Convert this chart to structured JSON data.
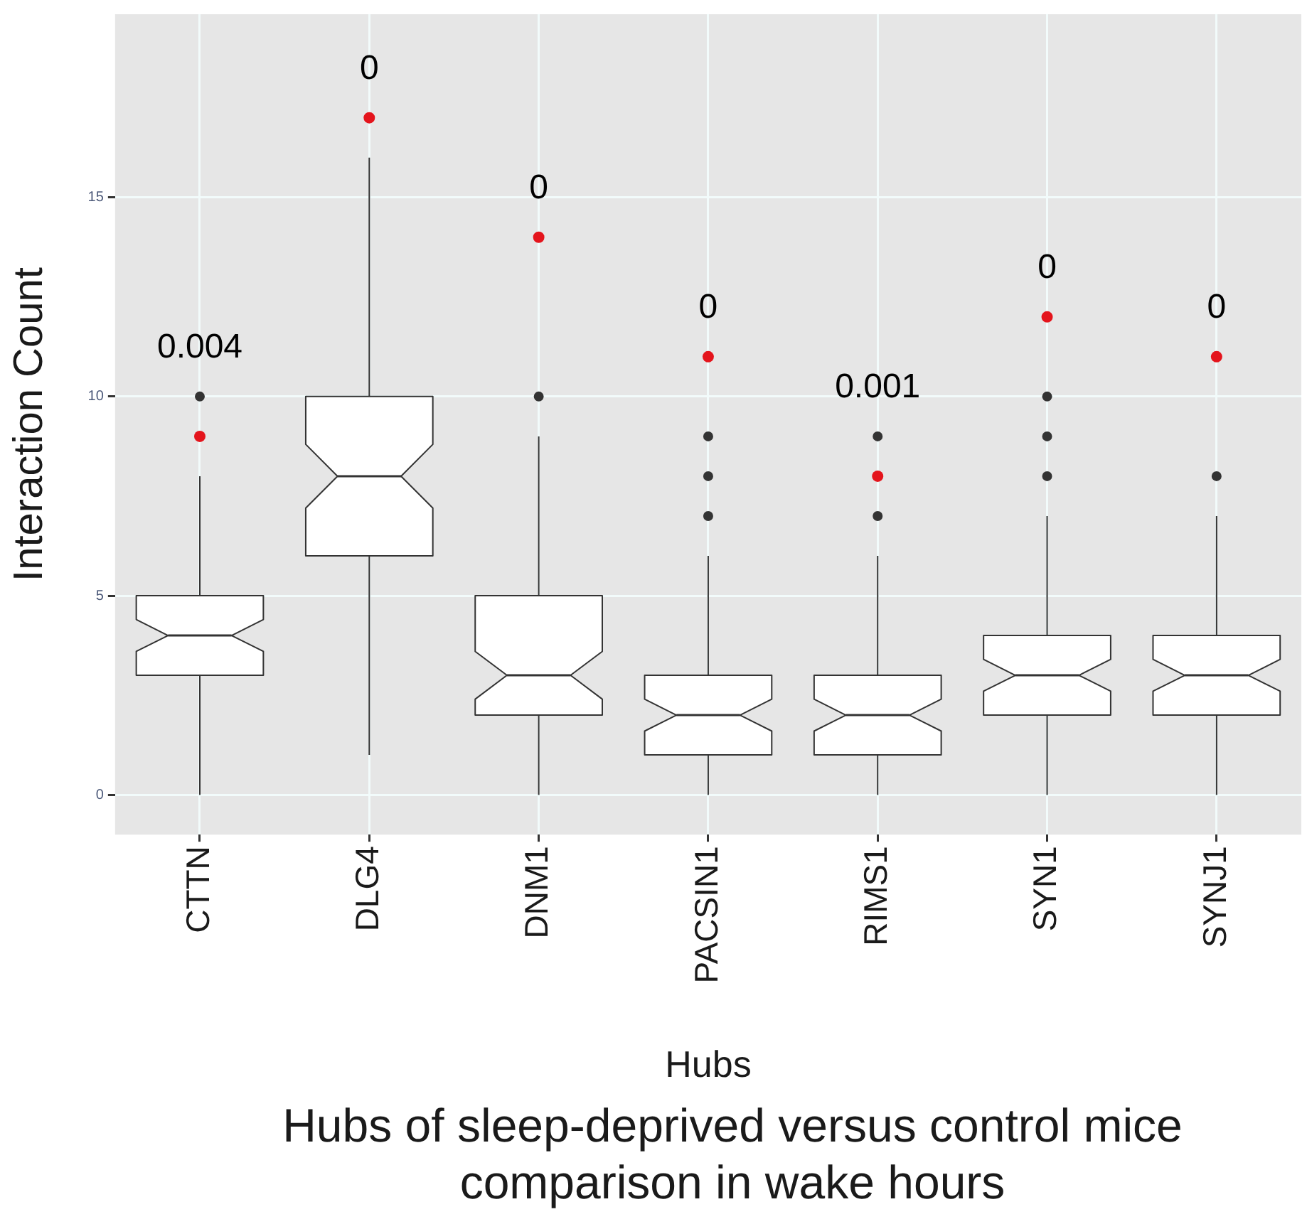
{
  "chart_data": {
    "type": "box",
    "title": "Hubs of sleep-deprived versus control mice comparison in wake hours",
    "xlabel": "Hubs",
    "ylabel": "Interaction Count",
    "categories": [
      "CTTN",
      "DLG4",
      "DNM1",
      "PACSIN1",
      "RIMS1",
      "SYN1",
      "SYNJ1"
    ],
    "boxes": [
      {
        "low": 0,
        "q1": 3,
        "median": 4,
        "q3": 5,
        "high": 8,
        "outliers": [
          10
        ]
      },
      {
        "low": 1,
        "q1": 6,
        "median": 8,
        "q3": 10,
        "high": 16
      },
      {
        "low": 0,
        "q1": 2,
        "median": 3,
        "q3": 5,
        "high": 9,
        "outliers": [
          10
        ]
      },
      {
        "low": 0,
        "q1": 1,
        "median": 2,
        "q3": 3,
        "high": 6,
        "outliers": [
          7,
          8,
          9
        ]
      },
      {
        "low": 0,
        "q1": 1,
        "median": 2,
        "q3": 3,
        "high": 6,
        "outliers": [
          7,
          9
        ]
      },
      {
        "low": 0,
        "q1": 2,
        "median": 3,
        "q3": 4,
        "high": 7,
        "outliers": [
          8,
          9,
          10
        ]
      },
      {
        "low": 0,
        "q1": 2,
        "median": 3,
        "q3": 4,
        "high": 7,
        "outliers": [
          8
        ]
      }
    ],
    "series": [
      {
        "type": "scatter",
        "color": "#e4141c",
        "x": [
          "CTTN",
          "DLG4",
          "DNM1",
          "PACSIN1",
          "RIMS1",
          "SYN1",
          "SYNJ1"
        ],
        "values": [
          9,
          17,
          14,
          11,
          8,
          12,
          11
        ]
      }
    ],
    "annotations": [
      {
        "text": "0.004",
        "x": "CTTN",
        "y": 9
      },
      {
        "text": "0",
        "x": "DLG4",
        "y": 17
      },
      {
        "text": "0",
        "x": "DNM1",
        "y": 14
      },
      {
        "text": "0",
        "x": "PACSIN1",
        "y": 11
      },
      {
        "text": "0.001",
        "x": "RIMS1",
        "y": 8
      },
      {
        "text": "0",
        "x": "SYN1",
        "y": 12
      },
      {
        "text": "0",
        "x": "SYNJ1",
        "y": 11
      }
    ],
    "ylim": [
      -1,
      19.6
    ],
    "yticks": [
      0,
      5,
      10,
      15
    ],
    "grid": true,
    "marker": "circle",
    "legend": false
  }
}
